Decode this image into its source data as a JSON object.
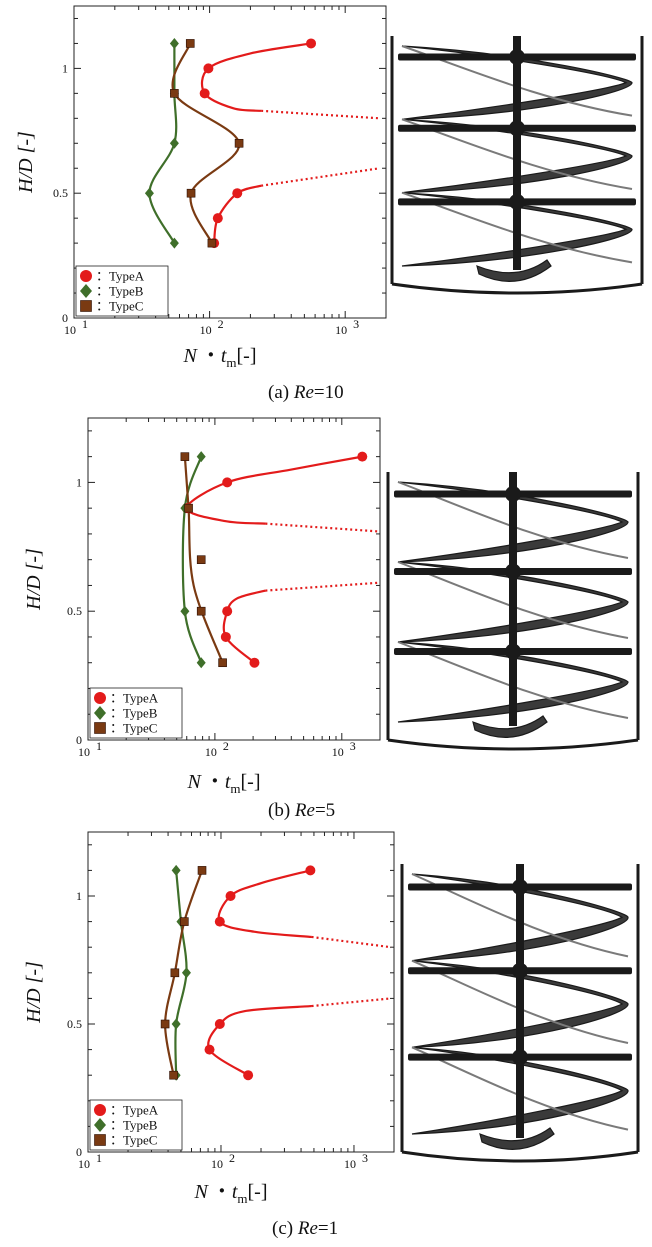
{
  "chart_data": [
    {
      "type": "line",
      "caption": {
        "prefix": "(a)",
        "re_label": "Re",
        "re_value": "=10"
      },
      "xlabel": {
        "main": "N",
        "dot": "・",
        "sub_base": "t",
        "sub": "m",
        "unit": "[-]"
      },
      "ylabel": "H/D [-]",
      "x_scale": "log",
      "xlim": [
        10,
        2000
      ],
      "ylim": [
        0,
        1.25
      ],
      "x_ticks": [
        {
          "base": "10",
          "exp": "1",
          "value": 10
        },
        {
          "base": "10",
          "exp": "2",
          "value": 100
        },
        {
          "base": "10",
          "exp": "3",
          "value": 1000
        }
      ],
      "y_ticks": [
        {
          "label": "0",
          "value": 0
        },
        {
          "label": "0.5",
          "value": 0.5
        },
        {
          "label": "1",
          "value": 1
        }
      ],
      "series": [
        {
          "name": "TypeA",
          "marker": "circle",
          "color": "#e31b1b",
          "points": [
            {
              "x": 560,
              "y": 1.1
            },
            {
              "x": 98,
              "y": 1.0
            },
            {
              "x": 92,
              "y": 0.9
            },
            {
              "x": 160,
              "y": 0.5
            },
            {
              "x": 115,
              "y": 0.4
            },
            {
              "x": 108,
              "y": 0.3
            }
          ],
          "curves": [
            {
              "points": [
                [
                  560,
                  1.1
                ],
                [
                  200,
                  1.06
                ],
                [
                  98,
                  1.0
                ],
                [
                  92,
                  0.9
                ],
                [
                  150,
                  0.84
                ],
                [
                  240,
                  0.83
                ]
              ],
              "dotted_to": [
                [
                  240,
                  0.83
                ],
                [
                  1800,
                  0.8
                ]
              ]
            },
            {
              "points": [
                [
                  240,
                  0.53
                ],
                [
                  160,
                  0.5
                ],
                [
                  115,
                  0.4
                ],
                [
                  108,
                  0.3
                ]
              ],
              "dotted_to": [
                [
                  240,
                  0.53
                ],
                [
                  1800,
                  0.6
                ]
              ]
            }
          ]
        },
        {
          "name": "TypeB",
          "marker": "diamond",
          "color": "#3f6f2a",
          "points": [
            {
              "x": 55,
              "y": 1.1
            },
            {
              "x": 55,
              "y": 0.9
            },
            {
              "x": 55,
              "y": 0.7
            },
            {
              "x": 36,
              "y": 0.5
            },
            {
              "x": 55,
              "y": 0.3
            }
          ],
          "curves": [
            {
              "points": [
                [
                  55,
                  1.1
                ],
                [
                  55,
                  0.9
                ],
                [
                  55,
                  0.7
                ],
                [
                  36,
                  0.5
                ],
                [
                  55,
                  0.3
                ]
              ]
            }
          ]
        },
        {
          "name": "TypeC",
          "marker": "square",
          "color": "#7a3a12",
          "points": [
            {
              "x": 72,
              "y": 1.1
            },
            {
              "x": 55,
              "y": 0.9
            },
            {
              "x": 165,
              "y": 0.7
            },
            {
              "x": 73,
              "y": 0.5
            },
            {
              "x": 104,
              "y": 0.3
            }
          ],
          "curves": [
            {
              "points": [
                [
                  72,
                  1.1
                ],
                [
                  55,
                  0.9
                ],
                [
                  165,
                  0.7
                ],
                [
                  73,
                  0.5
                ],
                [
                  104,
                  0.3
                ]
              ]
            }
          ]
        }
      ]
    },
    {
      "type": "line",
      "caption": {
        "prefix": "(b)",
        "re_label": "Re",
        "re_value": "=5"
      },
      "xlabel": {
        "main": "N",
        "dot": "・",
        "sub_base": "t",
        "sub": "m",
        "unit": "[-]"
      },
      "ylabel": "H/D [-]",
      "x_scale": "log",
      "xlim": [
        10,
        2000
      ],
      "ylim": [
        0,
        1.25
      ],
      "x_ticks": [
        {
          "base": "10",
          "exp": "1",
          "value": 10
        },
        {
          "base": "10",
          "exp": "2",
          "value": 100
        },
        {
          "base": "10",
          "exp": "3",
          "value": 1000
        }
      ],
      "y_ticks": [
        {
          "label": "0",
          "value": 0
        },
        {
          "label": "0.5",
          "value": 0.5
        },
        {
          "label": "1",
          "value": 1
        }
      ],
      "series": [
        {
          "name": "TypeA",
          "marker": "circle",
          "color": "#e31b1b",
          "points": [
            {
              "x": 1450,
              "y": 1.1
            },
            {
              "x": 125,
              "y": 1.0
            },
            {
              "x": 60,
              "y": 0.9
            },
            {
              "x": 125,
              "y": 0.5
            },
            {
              "x": 122,
              "y": 0.4
            },
            {
              "x": 205,
              "y": 0.3
            }
          ],
          "curves": [
            {
              "points": [
                [
                  1450,
                  1.1
                ],
                [
                  400,
                  1.05
                ],
                [
                  125,
                  1.0
                ],
                [
                  60,
                  0.9
                ],
                [
                  120,
                  0.85
                ],
                [
                  250,
                  0.84
                ]
              ],
              "dotted_to": [
                [
                  250,
                  0.84
                ],
                [
                  1900,
                  0.81
                ]
              ]
            },
            {
              "points": [
                [
                  250,
                  0.58
                ],
                [
                  150,
                  0.55
                ],
                [
                  125,
                  0.5
                ],
                [
                  122,
                  0.4
                ],
                [
                  205,
                  0.3
                ]
              ],
              "dotted_to": [
                [
                  250,
                  0.58
                ],
                [
                  1900,
                  0.61
                ]
              ]
            }
          ]
        },
        {
          "name": "TypeB",
          "marker": "diamond",
          "color": "#3f6f2a",
          "points": [
            {
              "x": 78,
              "y": 1.1
            },
            {
              "x": 58,
              "y": 0.9
            },
            {
              "x": 58,
              "y": 0.5
            },
            {
              "x": 78,
              "y": 0.3
            }
          ],
          "curves": [
            {
              "points": [
                [
                  78,
                  1.1
                ],
                [
                  58,
                  0.9
                ],
                [
                  58,
                  0.5
                ],
                [
                  78,
                  0.3
                ]
              ]
            }
          ]
        },
        {
          "name": "TypeC",
          "marker": "square",
          "color": "#7a3a12",
          "points": [
            {
              "x": 58,
              "y": 1.1
            },
            {
              "x": 62,
              "y": 0.9
            },
            {
              "x": 78,
              "y": 0.7
            },
            {
              "x": 78,
              "y": 0.5
            },
            {
              "x": 115,
              "y": 0.3
            }
          ],
          "curves": [
            {
              "points": [
                [
                  58,
                  1.1
                ],
                [
                  62,
                  0.9
                ],
                [
                  68,
                  0.6
                ],
                [
                  115,
                  0.3
                ]
              ]
            }
          ]
        }
      ]
    },
    {
      "type": "line",
      "caption": {
        "prefix": "(c)",
        "re_label": "Re",
        "re_value": "=1"
      },
      "xlabel": {
        "main": "N",
        "dot": "・",
        "sub_base": "t",
        "sub": "m",
        "unit": "[-]"
      },
      "ylabel": "H/D [-]",
      "x_scale": "log",
      "xlim": [
        10,
        2000
      ],
      "ylim": [
        0,
        1.25
      ],
      "x_ticks": [
        {
          "base": "10",
          "exp": "1",
          "value": 10
        },
        {
          "base": "10",
          "exp": "2",
          "value": 100
        },
        {
          "base": "10",
          "exp": "3",
          "value": 1000
        }
      ],
      "y_ticks": [
        {
          "label": "0",
          "value": 0
        },
        {
          "label": "0.5",
          "value": 0.5
        },
        {
          "label": "1",
          "value": 1
        }
      ],
      "series": [
        {
          "name": "TypeA",
          "marker": "circle",
          "color": "#e31b1b",
          "points": [
            {
              "x": 470,
              "y": 1.1
            },
            {
              "x": 118,
              "y": 1.0
            },
            {
              "x": 98,
              "y": 0.9
            },
            {
              "x": 98,
              "y": 0.5
            },
            {
              "x": 82,
              "y": 0.4
            },
            {
              "x": 160,
              "y": 0.3
            }
          ],
          "curves": [
            {
              "points": [
                [
                  470,
                  1.1
                ],
                [
                  200,
                  1.05
                ],
                [
                  118,
                  1.0
                ],
                [
                  98,
                  0.9
                ],
                [
                  180,
                  0.86
                ],
                [
                  480,
                  0.84
                ]
              ],
              "dotted_to": [
                [
                  480,
                  0.84
                ],
                [
                  1900,
                  0.8
                ]
              ]
            },
            {
              "points": [
                [
                  480,
                  0.57
                ],
                [
                  150,
                  0.55
                ],
                [
                  98,
                  0.5
                ],
                [
                  82,
                  0.4
                ],
                [
                  160,
                  0.3
                ]
              ],
              "dotted_to": [
                [
                  480,
                  0.57
                ],
                [
                  1900,
                  0.6
                ]
              ]
            }
          ]
        },
        {
          "name": "TypeB",
          "marker": "diamond",
          "color": "#3f6f2a",
          "points": [
            {
              "x": 46,
              "y": 1.1
            },
            {
              "x": 50,
              "y": 0.9
            },
            {
              "x": 55,
              "y": 0.7
            },
            {
              "x": 46,
              "y": 0.5
            },
            {
              "x": 46,
              "y": 0.3
            }
          ],
          "curves": [
            {
              "points": [
                [
                  46,
                  1.1
                ],
                [
                  50,
                  0.9
                ],
                [
                  55,
                  0.7
                ],
                [
                  46,
                  0.5
                ],
                [
                  46,
                  0.3
                ]
              ]
            }
          ]
        },
        {
          "name": "TypeC",
          "marker": "square",
          "color": "#7a3a12",
          "points": [
            {
              "x": 72,
              "y": 1.1
            },
            {
              "x": 53,
              "y": 0.9
            },
            {
              "x": 45,
              "y": 0.7
            },
            {
              "x": 38,
              "y": 0.5
            },
            {
              "x": 44,
              "y": 0.3
            }
          ],
          "curves": [
            {
              "points": [
                [
                  72,
                  1.1
                ],
                [
                  53,
                  0.9
                ],
                [
                  45,
                  0.7
                ],
                [
                  38,
                  0.5
                ],
                [
                  44,
                  0.3
                ]
              ]
            }
          ]
        }
      ]
    }
  ],
  "legend_placement": "bottom-left",
  "legend_separator": "：",
  "impeller_image": {
    "description_icon": "helical-ribbon-impeller-icon",
    "colors": {
      "frame": "#1a1a1a",
      "blade": "#3a3a3a",
      "blade_highlight": "#7a7a7a"
    }
  }
}
